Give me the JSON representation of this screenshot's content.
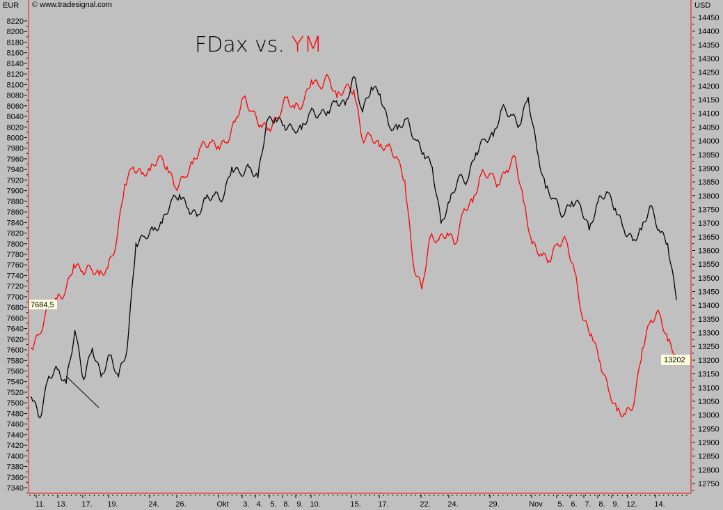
{
  "chart_data": {
    "type": "line",
    "title": "FDax vs. YM",
    "title_parts": [
      {
        "text": "FDax vs. ",
        "color": "#000000"
      },
      {
        "text": "YM",
        "color": "#ff0000"
      }
    ],
    "copyright": "© www.tradesignal.com",
    "left_axis": {
      "unit": "EUR",
      "range": [
        7320,
        8240
      ],
      "ticks": [
        "8220",
        "8200",
        "8180",
        "8160",
        "8140",
        "8120",
        "8100",
        "8080",
        "8060",
        "8040",
        "8020",
        "8000",
        "7980",
        "7960",
        "7940",
        "7920",
        "7900",
        "7880",
        "7860",
        "7840",
        "7820",
        "7800",
        "7780",
        "7760",
        "7740",
        "7720",
        "7700",
        "7680",
        "7660",
        "7640",
        "7620",
        "7600",
        "7580",
        "7560",
        "7540",
        "7520",
        "7500",
        "7480",
        "7460",
        "7440",
        "7420",
        "7400",
        "7380",
        "7360",
        "7340"
      ],
      "last_value_label": "7684,5"
    },
    "right_axis": {
      "unit": "USD",
      "range": [
        12700,
        14500
      ],
      "ticks": [
        "14450",
        "14400",
        "14350",
        "14300",
        "14250",
        "14200",
        "14150",
        "14100",
        "14050",
        "14000",
        "13950",
        "13900",
        "13850",
        "13800",
        "13750",
        "13700",
        "13650",
        "13600",
        "13550",
        "13500",
        "13450",
        "13400",
        "13350",
        "13300",
        "13250",
        "13200",
        "13150",
        "13100",
        "13050",
        "13000",
        "12950",
        "12900",
        "12850",
        "12800",
        "12750"
      ],
      "last_value_label": "13202"
    },
    "x_ticks": [
      "11.",
      "13.",
      "17.",
      "19.",
      "24.",
      "26.",
      "Okt",
      "3.",
      "4.",
      "5.",
      "8.",
      "9.",
      "10.",
      "15.",
      "17.",
      "22.",
      "24.",
      "29.",
      "Nov",
      "5.",
      "6.",
      "7.",
      "8.",
      "9.",
      "12.",
      "14."
    ],
    "grid": false,
    "series": [
      {
        "name": "FDax",
        "axis": "left",
        "color": "#000000",
        "values": [
          7511,
          7472,
          7550,
          7563,
          7537,
          7636,
          7544,
          7603,
          7550,
          7590,
          7550,
          7603,
          7800,
          7813,
          7826,
          7839,
          7879,
          7892,
          7866,
          7852,
          7885,
          7892,
          7885,
          7944,
          7931,
          7944,
          7925,
          8030,
          8036,
          8023,
          8016,
          8016,
          8049,
          8043,
          8049,
          8069,
          8062,
          8115,
          8049,
          8095,
          8082,
          8023,
          8016,
          8036,
          7997,
          7971,
          7944,
          7839,
          7879,
          7925,
          7918,
          7971,
          7997,
          8003,
          8056,
          8043,
          8023,
          8076,
          7977,
          7905,
          7885,
          7852,
          7879,
          7872,
          7826,
          7879,
          7898,
          7866,
          7826,
          7806,
          7826,
          7872,
          7826,
          7800,
          7695
        ]
      },
      {
        "name": "YM",
        "axis": "right",
        "color": "#ff0000",
        "values": [
          13244,
          13295,
          13397,
          13422,
          13447,
          13549,
          13524,
          13536,
          13511,
          13536,
          13625,
          13841,
          13904,
          13879,
          13892,
          13942,
          13904,
          13828,
          13866,
          13917,
          13980,
          13993,
          13980,
          13993,
          14069,
          14158,
          14107,
          14057,
          14044,
          14082,
          14158,
          14120,
          14133,
          14222,
          14196,
          14234,
          14158,
          14196,
          14184,
          14006,
          14019,
          13980,
          13980,
          13942,
          13854,
          13549,
          13460,
          13650,
          13638,
          13663,
          13625,
          13752,
          13777,
          13879,
          13879,
          13841,
          13892,
          13942,
          13777,
          13625,
          13587,
          13562,
          13625,
          13638,
          13524,
          13346,
          13295,
          13194,
          13092,
          13016,
          13003,
          13041,
          13244,
          13346,
          13371,
          13270,
          13219
        ]
      }
    ]
  }
}
